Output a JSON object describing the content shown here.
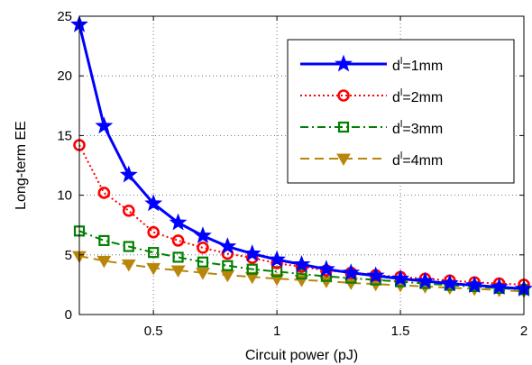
{
  "chart_data": {
    "type": "line",
    "xlabel": "Circuit power (pJ)",
    "ylabel": "Long-term EE",
    "xlim": [
      0.2,
      2.0
    ],
    "ylim": [
      0,
      25
    ],
    "xticks": [
      0.5,
      1,
      1.5,
      2
    ],
    "xtick_labels": [
      "0.5",
      "1",
      "1.5",
      "2"
    ],
    "yticks": [
      0,
      5,
      10,
      15,
      20,
      25
    ],
    "ytick_labels": [
      "0",
      "5",
      "10",
      "15",
      "20",
      "25"
    ],
    "grid": "dotted",
    "legend_position": "top-right",
    "x": [
      0.2,
      0.3,
      0.4,
      0.5,
      0.6,
      0.7,
      0.8,
      0.9,
      1.0,
      1.1,
      1.2,
      1.3,
      1.4,
      1.5,
      1.6,
      1.7,
      1.8,
      1.9,
      2.0
    ],
    "series": [
      {
        "name_prefix": "d",
        "name_sup": "l",
        "name_suffix": "=1mm",
        "color": "#0000ff",
        "line": "solid",
        "marker": "star",
        "values": [
          24.3,
          15.8,
          11.7,
          9.3,
          7.7,
          6.6,
          5.7,
          5.1,
          4.6,
          4.2,
          3.8,
          3.5,
          3.25,
          3.0,
          2.8,
          2.6,
          2.45,
          2.3,
          2.15
        ]
      },
      {
        "name_prefix": "d",
        "name_sup": "l",
        "name_suffix": "=2mm",
        "color": "#ff0000",
        "line": "dotted",
        "marker": "circle",
        "values": [
          14.2,
          10.2,
          8.7,
          6.9,
          6.2,
          5.6,
          5.1,
          4.75,
          4.3,
          4.0,
          3.7,
          3.5,
          3.3,
          3.15,
          3.0,
          2.85,
          2.7,
          2.6,
          2.5
        ]
      },
      {
        "name_prefix": "d",
        "name_sup": "l",
        "name_suffix": "=3mm",
        "color": "#008000",
        "line": "dashdot",
        "marker": "square",
        "values": [
          7.0,
          6.2,
          5.7,
          5.2,
          4.8,
          4.4,
          4.1,
          3.8,
          3.6,
          3.4,
          3.2,
          3.05,
          2.9,
          2.75,
          2.6,
          2.45,
          2.35,
          2.2,
          2.1
        ]
      },
      {
        "name_prefix": "d",
        "name_sup": "l",
        "name_suffix": "=4mm",
        "color": "#b8860b",
        "line": "dashed",
        "marker": "triangle-down",
        "values": [
          4.9,
          4.5,
          4.2,
          3.9,
          3.7,
          3.5,
          3.3,
          3.15,
          3.0,
          2.9,
          2.8,
          2.65,
          2.55,
          2.45,
          2.35,
          2.25,
          2.15,
          2.05,
          1.95
        ]
      }
    ]
  }
}
